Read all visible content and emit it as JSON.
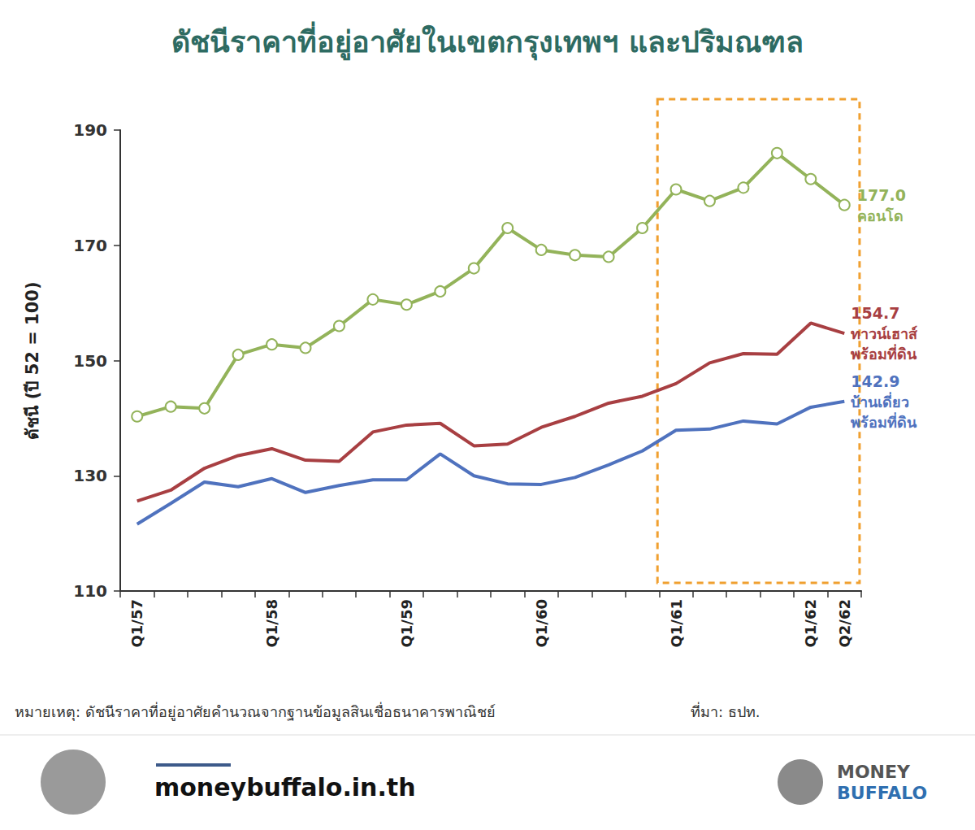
{
  "chart_data": {
    "type": "line",
    "title": "ดัชนีราคาที่อยู่อาศัยในเขตกรุงเทพฯ และปริมณฑล",
    "y_label": "ดัชนี (ปี 52 = 100)",
    "categories": [
      "Q1/57",
      null,
      null,
      null,
      "Q1/58",
      null,
      null,
      null,
      "Q1/59",
      null,
      null,
      null,
      "Q1/60",
      null,
      null,
      null,
      "Q1/61",
      null,
      null,
      null,
      "Q1/62",
      "Q2/62"
    ],
    "series": [
      {
        "name": "คอนโด",
        "color": "#93b35a",
        "marker": "circle",
        "values": [
          140.3,
          142.0,
          141.7,
          151.0,
          152.8,
          152.2,
          156.0,
          160.6,
          159.7,
          162.0,
          166.0,
          173.0,
          169.2,
          168.3,
          168.0,
          173.0,
          179.7,
          177.7,
          180.0,
          186.0,
          181.5,
          177.0
        ],
        "value_labels": [
          null,
          null,
          null,
          null,
          null,
          null,
          null,
          null,
          null,
          null,
          null,
          null,
          null,
          null,
          null,
          null,
          null,
          null,
          null,
          null,
          null,
          "177.0"
        ]
      },
      {
        "name": "ทาวน์เฮาส์ พร้อมที่ดิน",
        "color": "#a83f42",
        "marker": "none",
        "values": [
          125.6,
          127.5,
          131.3,
          133.5,
          134.7,
          132.7,
          132.5,
          137.6,
          138.8,
          139.1,
          135.2,
          135.5,
          138.4,
          140.3,
          142.6,
          143.8,
          146.0,
          149.6,
          151.2,
          151.1,
          156.5,
          154.7
        ],
        "value_labels": [
          null,
          null,
          null,
          null,
          null,
          null,
          null,
          null,
          null,
          null,
          null,
          null,
          null,
          null,
          null,
          null,
          null,
          null,
          null,
          null,
          null,
          "154.7"
        ]
      },
      {
        "name": "บ้านเดี่ยว พร้อมที่ดิน",
        "color": "#4f72be",
        "marker": "none",
        "values": [
          121.6,
          125.2,
          128.9,
          128.1,
          129.5,
          127.1,
          128.3,
          129.3,
          129.3,
          133.8,
          130.0,
          128.6,
          128.5,
          129.7,
          131.9,
          134.3,
          137.9,
          138.1,
          139.5,
          139.0,
          141.9,
          142.9
        ],
        "value_labels": [
          null,
          null,
          null,
          null,
          null,
          null,
          null,
          null,
          null,
          null,
          null,
          null,
          null,
          null,
          null,
          null,
          null,
          null,
          null,
          null,
          null,
          "142.9"
        ]
      }
    ],
    "ylim": [
      110,
      190
    ],
    "yticks": [
      110,
      130,
      150,
      170,
      190
    ],
    "grid": false,
    "note": "หมายเหตุ: ดัชนีราคาที่อยู่อาศัยคำนวณจากฐานข้อมูลสินเชื่อธนาคารพาณิชย์",
    "source": "ที่มา: ธปท.",
    "footer": {
      "website": "moneybuffalo.in.th",
      "brand": [
        "MONEY",
        "BUFFALO"
      ]
    }
  }
}
